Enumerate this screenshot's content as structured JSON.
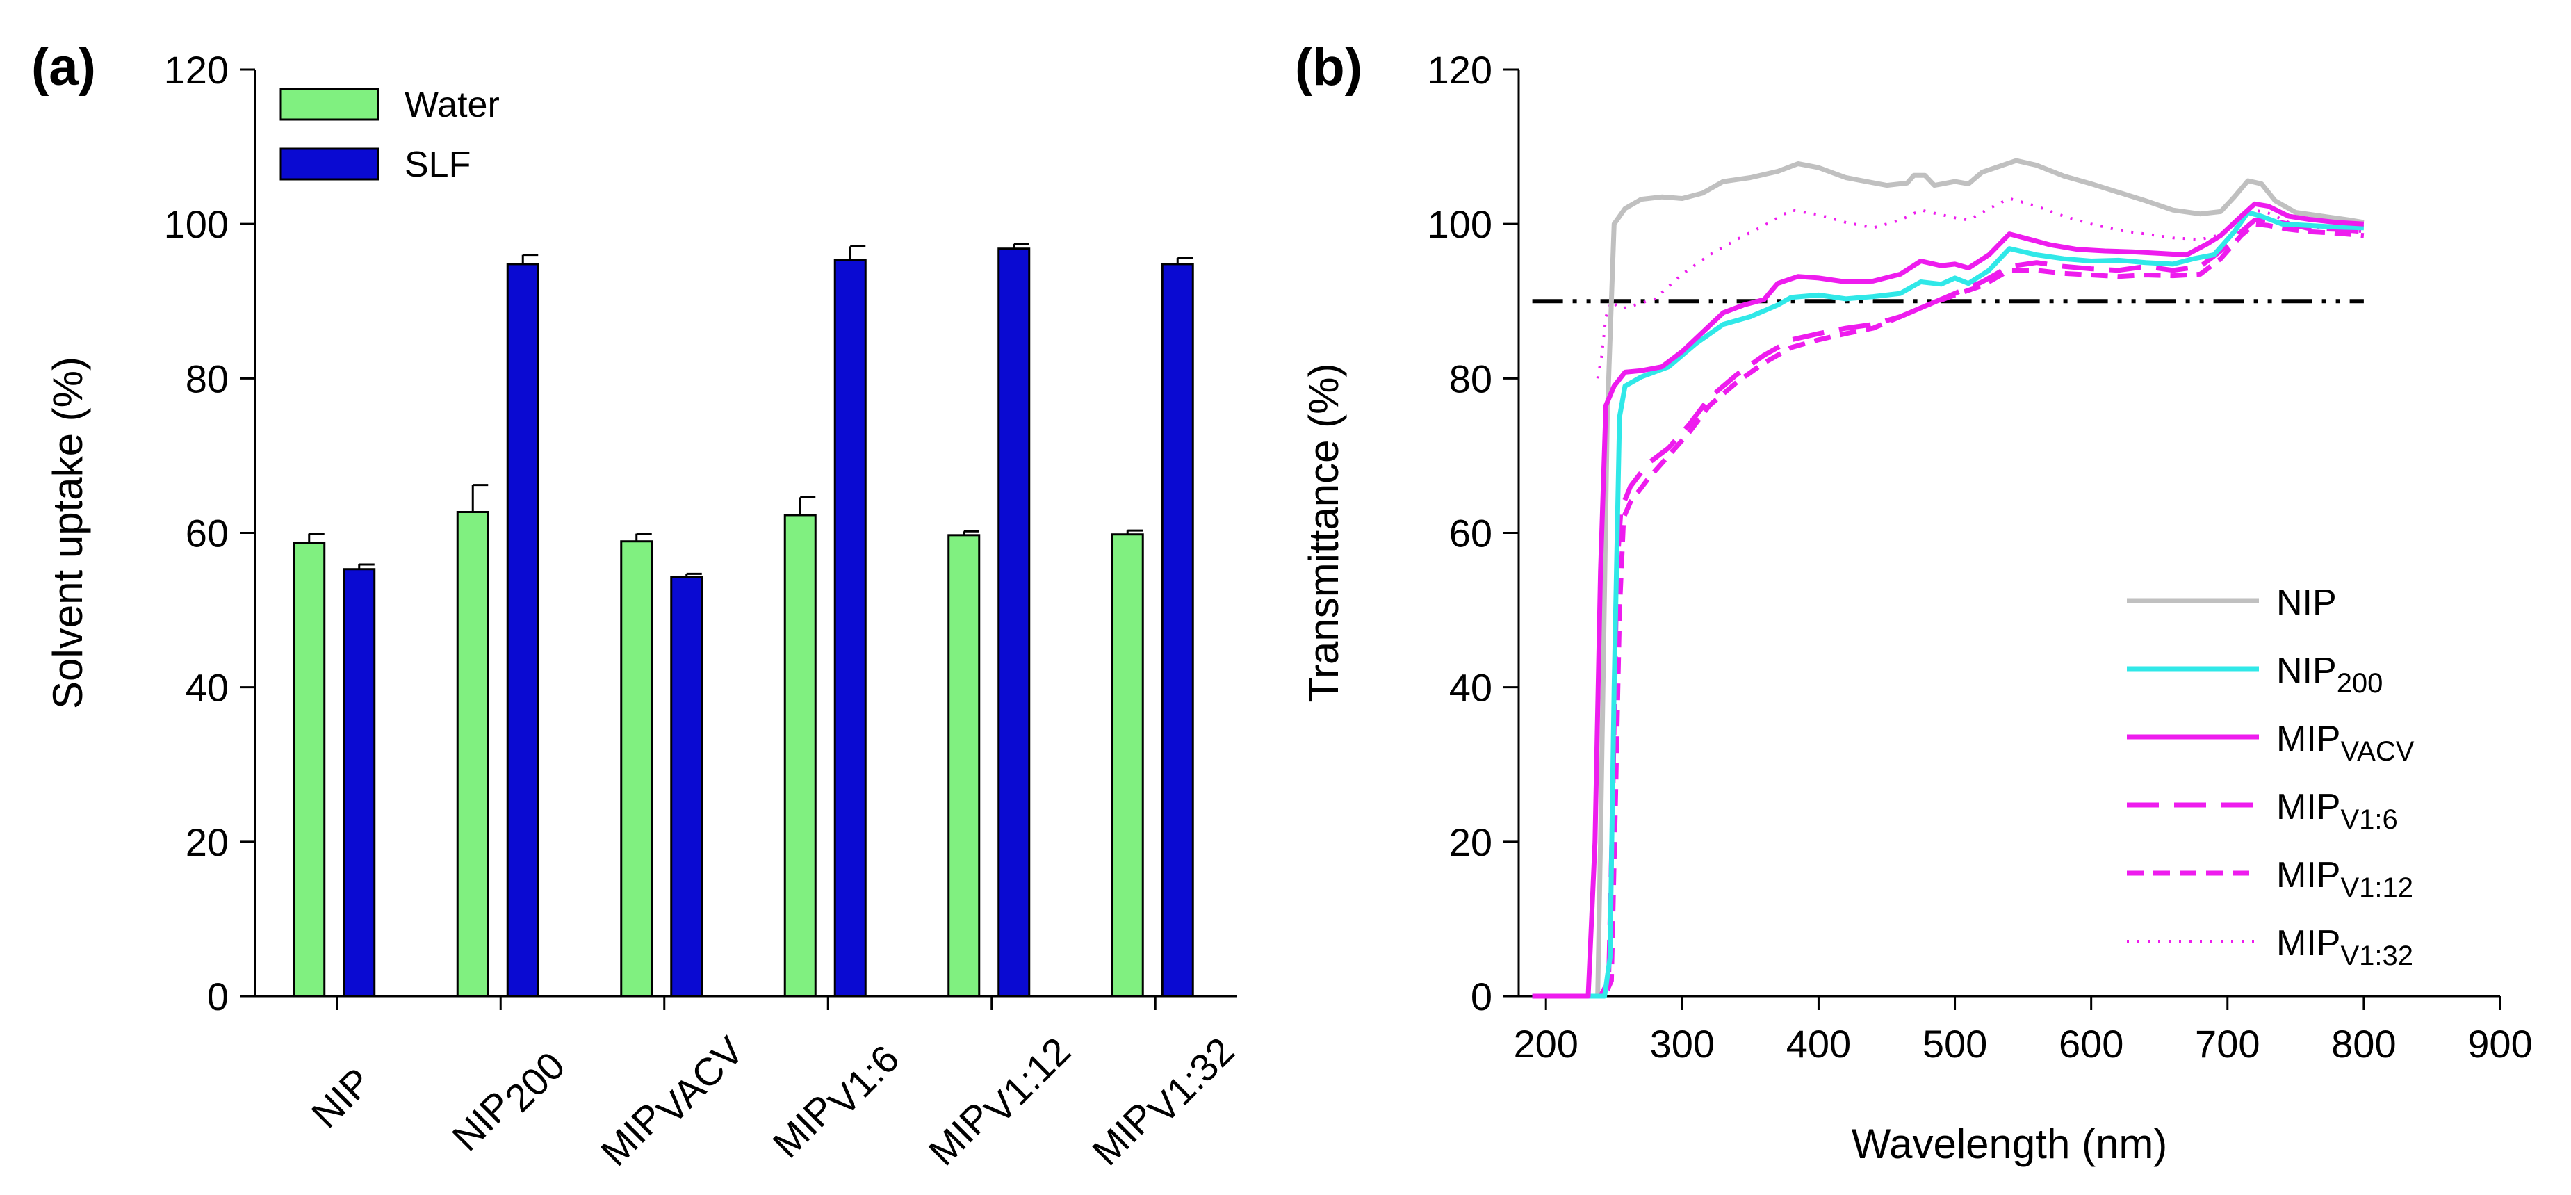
{
  "chart_data": [
    {
      "panel": "(a)",
      "type": "bar",
      "ylabel": "Solvent uptake (%)",
      "ylim": [
        0,
        120
      ],
      "yticks": [
        0,
        20,
        40,
        60,
        80,
        100,
        120
      ],
      "categories": [
        {
          "main": "NIP",
          "sub": ""
        },
        {
          "main": "NIP",
          "sub": "200"
        },
        {
          "main": "MIP",
          "sub": "VACV"
        },
        {
          "main": "MIP",
          "sub": "V1:6"
        },
        {
          "main": "MIP",
          "sub": "V1:12"
        },
        {
          "main": "MIP",
          "sub": "V1:32"
        }
      ],
      "series": [
        {
          "name": "Water",
          "color": "#80f080",
          "values": [
            58.7,
            62.7,
            58.9,
            62.3,
            59.7,
            59.8
          ],
          "errors": [
            1.2,
            3.5,
            1.0,
            2.3,
            0.5,
            0.5
          ]
        },
        {
          "name": "SLF",
          "color": "#0a0ad2",
          "values": [
            55.3,
            94.8,
            54.3,
            95.3,
            96.8,
            94.8
          ],
          "errors": [
            0.6,
            1.2,
            0.4,
            1.8,
            0.6,
            0.8
          ]
        }
      ],
      "legend_position": "top-left"
    },
    {
      "panel": "(b)",
      "type": "line",
      "xlabel": "Wavelength (nm)",
      "ylabel": "Transmittance (%)",
      "xlim": [
        180,
        900
      ],
      "ylim": [
        0,
        120
      ],
      "xticks": [
        200,
        300,
        400,
        500,
        600,
        700,
        800,
        900
      ],
      "yticks": [
        0,
        20,
        40,
        60,
        80,
        100,
        120
      ],
      "reference_line": {
        "y": 90,
        "x_range": [
          190,
          800
        ],
        "style": "dash-dot-dot",
        "color": "#000000"
      },
      "legend_position": "bottom-right",
      "series": [
        {
          "name": "NIP",
          "sub": "",
          "color": "#c0c0c0",
          "style": "solid",
          "points": [
            [
              190,
              0
            ],
            [
              210,
              0
            ],
            [
              230,
              0
            ],
            [
              238,
              0
            ],
            [
              240,
              20
            ],
            [
              245,
              75
            ],
            [
              250,
              100
            ],
            [
              258,
              102
            ],
            [
              270,
              103.2
            ],
            [
              285,
              103.5
            ],
            [
              300,
              103.3
            ],
            [
              315,
              104
            ],
            [
              330,
              105.5
            ],
            [
              350,
              106
            ],
            [
              370,
              106.8
            ],
            [
              385,
              107.8
            ],
            [
              400,
              107.3
            ],
            [
              420,
              106
            ],
            [
              450,
              105
            ],
            [
              465,
              105.3
            ],
            [
              470,
              106.3
            ],
            [
              478,
              106.3
            ],
            [
              485,
              105
            ],
            [
              500,
              105.5
            ],
            [
              510,
              105.2
            ],
            [
              520,
              106.7
            ],
            [
              530,
              107.3
            ],
            [
              545,
              108.2
            ],
            [
              560,
              107.6
            ],
            [
              580,
              106.2
            ],
            [
              600,
              105.2
            ],
            [
              620,
              104.1
            ],
            [
              640,
              103
            ],
            [
              660,
              101.8
            ],
            [
              680,
              101.3
            ],
            [
              695,
              101.6
            ],
            [
              705,
              103.5
            ],
            [
              715,
              105.6
            ],
            [
              725,
              105.2
            ],
            [
              735,
              103
            ],
            [
              750,
              101.5
            ],
            [
              770,
              101
            ],
            [
              790,
              100.5
            ],
            [
              800,
              100.2
            ]
          ]
        },
        {
          "name": "NIP",
          "sub": "200",
          "color": "#30e8e8",
          "style": "solid",
          "points": [
            [
              190,
              0
            ],
            [
              230,
              0
            ],
            [
              243,
              0
            ],
            [
              247,
              5
            ],
            [
              250,
              40
            ],
            [
              254,
              75
            ],
            [
              258,
              79
            ],
            [
              270,
              80.2
            ],
            [
              290,
              81.5
            ],
            [
              310,
              84.5
            ],
            [
              330,
              87
            ],
            [
              350,
              88
            ],
            [
              370,
              89.5
            ],
            [
              380,
              90.5
            ],
            [
              400,
              90.8
            ],
            [
              420,
              90.3
            ],
            [
              440,
              90.6
            ],
            [
              460,
              91
            ],
            [
              475,
              92.5
            ],
            [
              490,
              92.2
            ],
            [
              500,
              93
            ],
            [
              510,
              92.3
            ],
            [
              525,
              94
            ],
            [
              540,
              96.8
            ],
            [
              560,
              96
            ],
            [
              580,
              95.5
            ],
            [
              600,
              95.2
            ],
            [
              620,
              95.3
            ],
            [
              640,
              95
            ],
            [
              660,
              94.8
            ],
            [
              675,
              95.5
            ],
            [
              690,
              96
            ],
            [
              705,
              99
            ],
            [
              715,
              101.5
            ],
            [
              725,
              101
            ],
            [
              740,
              100
            ],
            [
              760,
              99.8
            ],
            [
              780,
              99.6
            ],
            [
              800,
              99.5
            ]
          ]
        },
        {
          "name": "MIP",
          "sub": "VACV",
          "color": "#ee1cee",
          "style": "solid",
          "points": [
            [
              190,
              0
            ],
            [
              226,
              0
            ],
            [
              231,
              0
            ],
            [
              236,
              20
            ],
            [
              240,
              55
            ],
            [
              244,
              76.5
            ],
            [
              250,
              79
            ],
            [
              258,
              80.8
            ],
            [
              270,
              81
            ],
            [
              285,
              81.5
            ],
            [
              300,
              83.5
            ],
            [
              315,
              86
            ],
            [
              330,
              88.5
            ],
            [
              345,
              89.5
            ],
            [
              360,
              90.2
            ],
            [
              370,
              92.3
            ],
            [
              385,
              93.2
            ],
            [
              400,
              93
            ],
            [
              420,
              92.5
            ],
            [
              440,
              92.6
            ],
            [
              460,
              93.5
            ],
            [
              475,
              95.2
            ],
            [
              490,
              94.6
            ],
            [
              500,
              94.8
            ],
            [
              510,
              94.3
            ],
            [
              525,
              96
            ],
            [
              540,
              98.7
            ],
            [
              555,
              98
            ],
            [
              570,
              97.3
            ],
            [
              590,
              96.7
            ],
            [
              610,
              96.5
            ],
            [
              630,
              96.4
            ],
            [
              650,
              96.2
            ],
            [
              670,
              96
            ],
            [
              685,
              97.4
            ],
            [
              695,
              98.5
            ],
            [
              710,
              101
            ],
            [
              720,
              102.6
            ],
            [
              730,
              102.3
            ],
            [
              745,
              101
            ],
            [
              760,
              100.6
            ],
            [
              780,
              100.2
            ],
            [
              800,
              100
            ]
          ]
        },
        {
          "name": "MIP",
          "sub": "V1:6",
          "color": "#ee1cee",
          "style": "longdash",
          "points": [
            [
              190,
              0
            ],
            [
              240,
              0
            ],
            [
              246,
              2
            ],
            [
              249,
              25
            ],
            [
              252,
              55
            ],
            [
              255,
              63
            ],
            [
              262,
              66
            ],
            [
              275,
              69
            ],
            [
              290,
              71
            ],
            [
              305,
              74
            ],
            [
              320,
              77.5
            ],
            [
              340,
              80.5
            ],
            [
              360,
              83
            ],
            [
              380,
              85
            ],
            [
              400,
              85.8
            ],
            [
              420,
              86.5
            ],
            [
              440,
              87
            ],
            [
              460,
              88
            ],
            [
              480,
              89.5
            ],
            [
              500,
              91
            ],
            [
              520,
              92.5
            ],
            [
              540,
              94.5
            ],
            [
              560,
              95
            ],
            [
              580,
              94.5
            ],
            [
              600,
              94.2
            ],
            [
              620,
              94
            ],
            [
              640,
              94.5
            ],
            [
              660,
              94
            ],
            [
              680,
              94.5
            ],
            [
              695,
              96.5
            ],
            [
              710,
              99
            ],
            [
              720,
              100.5
            ],
            [
              730,
              100.5
            ],
            [
              745,
              100
            ],
            [
              760,
              99.4
            ],
            [
              780,
              99.3
            ],
            [
              800,
              99
            ]
          ]
        },
        {
          "name": "MIP",
          "sub": "V1:12",
          "color": "#ee1cee",
          "style": "shortdash",
          "points": [
            [
              190,
              0
            ],
            [
              243,
              0
            ],
            [
              248,
              2
            ],
            [
              251,
              25
            ],
            [
              254,
              50
            ],
            [
              257,
              62
            ],
            [
              262,
              64
            ],
            [
              275,
              67
            ],
            [
              290,
              70
            ],
            [
              305,
              73
            ],
            [
              320,
              76.5
            ],
            [
              340,
              79.5
            ],
            [
              360,
              82
            ],
            [
              380,
              84
            ],
            [
              400,
              85
            ],
            [
              420,
              85.8
            ],
            [
              440,
              86.5
            ],
            [
              460,
              88
            ],
            [
              480,
              89.5
            ],
            [
              500,
              90.8
            ],
            [
              520,
              92
            ],
            [
              540,
              94
            ],
            [
              560,
              94
            ],
            [
              580,
              93.6
            ],
            [
              600,
              93.4
            ],
            [
              620,
              93.2
            ],
            [
              640,
              93.4
            ],
            [
              660,
              93.3
            ],
            [
              680,
              93.5
            ],
            [
              695,
              95.5
            ],
            [
              710,
              98.5
            ],
            [
              720,
              100
            ],
            [
              730,
              99.8
            ],
            [
              745,
              99.3
            ],
            [
              760,
              99
            ],
            [
              780,
              98.8
            ],
            [
              800,
              98.5
            ]
          ]
        },
        {
          "name": "MIP",
          "sub": "V1:32",
          "color": "#ee1cee",
          "style": "dotted",
          "points": [
            [
              238,
              80
            ],
            [
              241,
              83
            ],
            [
              244,
              88
            ],
            [
              248,
              90
            ],
            [
              255,
              89
            ],
            [
              265,
              89.5
            ],
            [
              280,
              90.3
            ],
            [
              300,
              93.5
            ],
            [
              320,
              96
            ],
            [
              340,
              98
            ],
            [
              360,
              99.8
            ],
            [
              380,
              101.8
            ],
            [
              400,
              101.2
            ],
            [
              420,
              100.2
            ],
            [
              440,
              99.5
            ],
            [
              460,
              100.5
            ],
            [
              475,
              101.8
            ],
            [
              490,
              101.2
            ],
            [
              500,
              100.8
            ],
            [
              510,
              100.5
            ],
            [
              525,
              102
            ],
            [
              540,
              103.3
            ],
            [
              560,
              102.3
            ],
            [
              580,
              101
            ],
            [
              600,
              100
            ],
            [
              620,
              99.2
            ],
            [
              640,
              98.7
            ],
            [
              660,
              98.2
            ],
            [
              680,
              98
            ],
            [
              695,
              98.6
            ],
            [
              710,
              100.5
            ],
            [
              720,
              101.8
            ],
            [
              730,
              101.4
            ],
            [
              745,
              100.2
            ],
            [
              760,
              99.6
            ],
            [
              780,
              99.3
            ],
            [
              800,
              99
            ]
          ]
        }
      ]
    }
  ]
}
